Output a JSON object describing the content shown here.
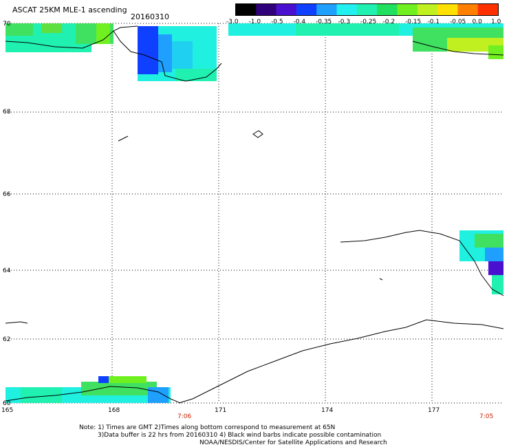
{
  "title": "ASCAT 25KM MLE-1 ascending",
  "date": "20160310",
  "colorbar": {
    "labels": [
      "-3.0",
      "-1.0",
      "-0.5",
      "-0.4",
      "-0.35",
      "-0.3",
      "-0.25",
      "-0.2",
      "-0.15",
      "-0.1",
      "-0.05",
      "0.0",
      "1.0"
    ],
    "colors": [
      "#000000",
      "#30007a",
      "#4a10d0",
      "#1040ff",
      "#1fa0ff",
      "#20f0f0",
      "#20f0b0",
      "#20e060",
      "#70f020",
      "#c0f020",
      "#ffe000",
      "#ff8000",
      "#ff3000"
    ]
  },
  "lat_labels": [
    "70",
    "68",
    "66",
    "64",
    "62",
    "60"
  ],
  "lon_labels": [
    "165",
    "168",
    "171",
    "174",
    "177"
  ],
  "times": [
    "7:06",
    "7:05"
  ],
  "notes": [
    "Note: 1) Times are GMT 2)Times along bottom correspond to measurement at 65N",
    "3)Data buffer is 22 hrs from 20160310 4) Black wind barbs indicate possible contamination",
    "NOAA/NESDIS/Center for Satellite Applications and Research"
  ]
}
